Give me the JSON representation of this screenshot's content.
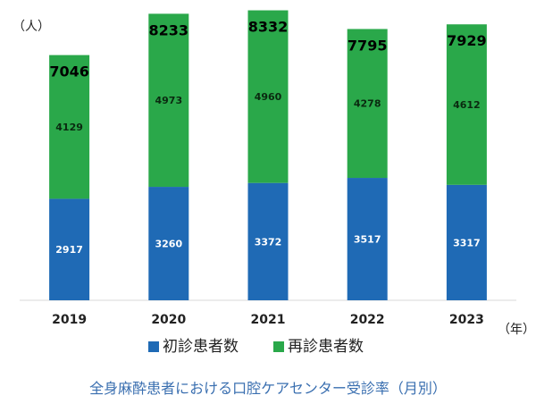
{
  "chart_data": {
    "type": "bar",
    "stacked": true,
    "y_unit": "（人）",
    "x_unit": "（年）",
    "categories": [
      "2019",
      "2020",
      "2021",
      "2022",
      "2023"
    ],
    "series": [
      {
        "name": "初診患者数",
        "values": [
          2917,
          3260,
          3372,
          3517,
          3317
        ],
        "color": "#1f6ab5"
      },
      {
        "name": "再診患者数",
        "values": [
          4129,
          4973,
          4960,
          4278,
          4612
        ],
        "color": "#2aa84a"
      }
    ],
    "totals": [
      7046,
      8233,
      8332,
      7795,
      7929
    ],
    "ylim": [
      0,
      8500
    ],
    "legend_position": "bottom",
    "grid": false,
    "caption": "全身麻酔患者における口腔ケアセンター受診率（月別）"
  }
}
